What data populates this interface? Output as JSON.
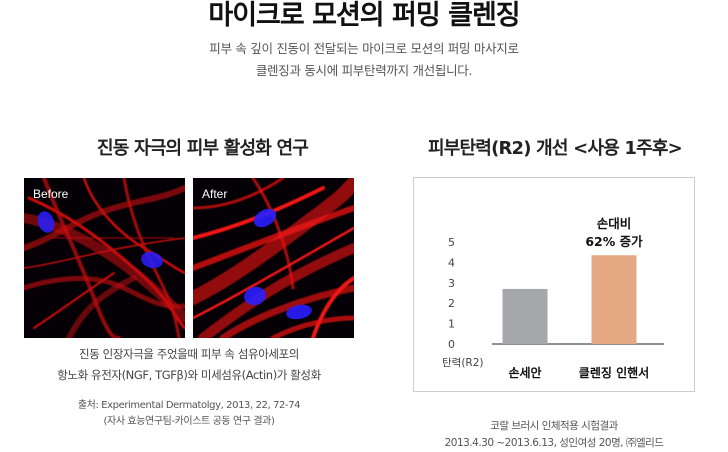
{
  "hero": {
    "title": "마이크로 모션의 퍼밍 클렌징",
    "subtitle_line1": "피부 속 깊이 진동이 전달되는 마이크로 모션의 퍼밍 마사지로",
    "subtitle_line2": "클렌징과 동시에 피부탄력까지 개선됩니다."
  },
  "study": {
    "title": "진동 자극의 피부 활성화 연구",
    "before_label": "Before",
    "after_label": "After",
    "caption_line1": "진동 인장자극을 주었을때 피부 속 섬유아세포의",
    "caption_line2": "항노화 유전자(NGF, TGFβ)와 미세섬유(Actin)가 활성화",
    "source_line1": "출처: Experimental Dermatolgy, 2013, 22, 72-74",
    "source_line2": "(자사 효능연구팀-카이스트 공동 연구 결과)"
  },
  "elasticity": {
    "title": "피부탄력(R2) 개선 <사용 1주후>",
    "test_line1": "코랄 브러시 인체적용 시험결과",
    "test_line2": "2013.4.30 ~2013.6.13, 성인여성 20명, ㈜엘리드"
  },
  "chart_data": {
    "type": "bar",
    "title": "피부탄력(R2) 개선 <사용 1주후>",
    "categories": [
      "손세안",
      "클렌징 인핸서"
    ],
    "values": [
      2.7,
      4.35
    ],
    "ylabel": "탄력(R2)",
    "ylim": [
      0,
      5
    ],
    "yticks": [
      0,
      1,
      2,
      3,
      4,
      5
    ],
    "grid": false,
    "annotation": {
      "line1": "손대비",
      "line2": "62% 증가"
    },
    "colors": [
      "#a6a7ab",
      "#e6a882"
    ]
  }
}
